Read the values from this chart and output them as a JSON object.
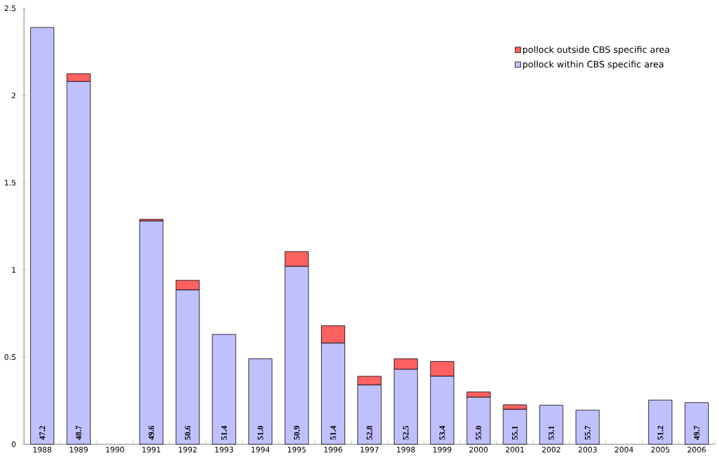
{
  "chart_data": {
    "type": "bar",
    "stacked": true,
    "categories": [
      "1988",
      "1989",
      "1990",
      "1991",
      "1992",
      "1993",
      "1994",
      "1995",
      "1996",
      "1997",
      "1998",
      "1999",
      "2000",
      "2001",
      "2002",
      "2003",
      "2004",
      "2005",
      "2006"
    ],
    "series": [
      {
        "name": "pollock within CBS specific area",
        "color": "#c0c0ff",
        "values": [
          2.39,
          2.08,
          null,
          1.28,
          0.885,
          0.63,
          0.49,
          1.02,
          0.58,
          0.34,
          0.43,
          0.39,
          0.27,
          0.2,
          0.224,
          0.196,
          null,
          0.253,
          0.239
        ]
      },
      {
        "name": "pollock outside CBS specific area",
        "color": "#ff6060",
        "values": [
          null,
          0.045,
          null,
          0.01,
          0.055,
          null,
          null,
          0.085,
          0.1,
          0.05,
          0.06,
          0.085,
          0.03,
          0.026,
          null,
          null,
          null,
          null,
          null
        ]
      }
    ],
    "ylim": [
      0,
      2.5
    ],
    "yticks": [
      0,
      0.5,
      1,
      1.5,
      2,
      2.5
    ],
    "legend": "top right",
    "annotations": [
      {
        "text": "47.2",
        "x": "1988",
        "y": 0
      },
      {
        "text": "48.7",
        "x": "1989",
        "y": 0
      },
      {
        "text": "49.6",
        "x": "1991",
        "y": 0
      },
      {
        "text": "50.6",
        "x": "1992",
        "y": 0
      },
      {
        "text": "51.4",
        "x": "1993",
        "y": 0
      },
      {
        "text": "51.0",
        "x": "1994",
        "y": 0
      },
      {
        "text": "50.9",
        "x": "1995",
        "y": 0
      },
      {
        "text": "51.4",
        "x": "1996",
        "y": 0
      },
      {
        "text": "52.8",
        "x": "1997",
        "y": 0
      },
      {
        "text": "52.5",
        "x": "1998",
        "y": 0
      },
      {
        "text": "53.4",
        "x": "1999",
        "y": 0
      },
      {
        "text": "55.0",
        "x": "2000",
        "y": 0
      },
      {
        "text": "55.1",
        "x": "2001",
        "y": 0
      },
      {
        "text": "53.1",
        "x": "2002",
        "y": 0
      },
      {
        "text": "55.7",
        "x": "2003",
        "y": 0
      },
      {
        "text": "51.2",
        "x": "2005",
        "y": 0
      },
      {
        "text": "49.7",
        "x": "2006",
        "y": 0
      }
    ]
  }
}
